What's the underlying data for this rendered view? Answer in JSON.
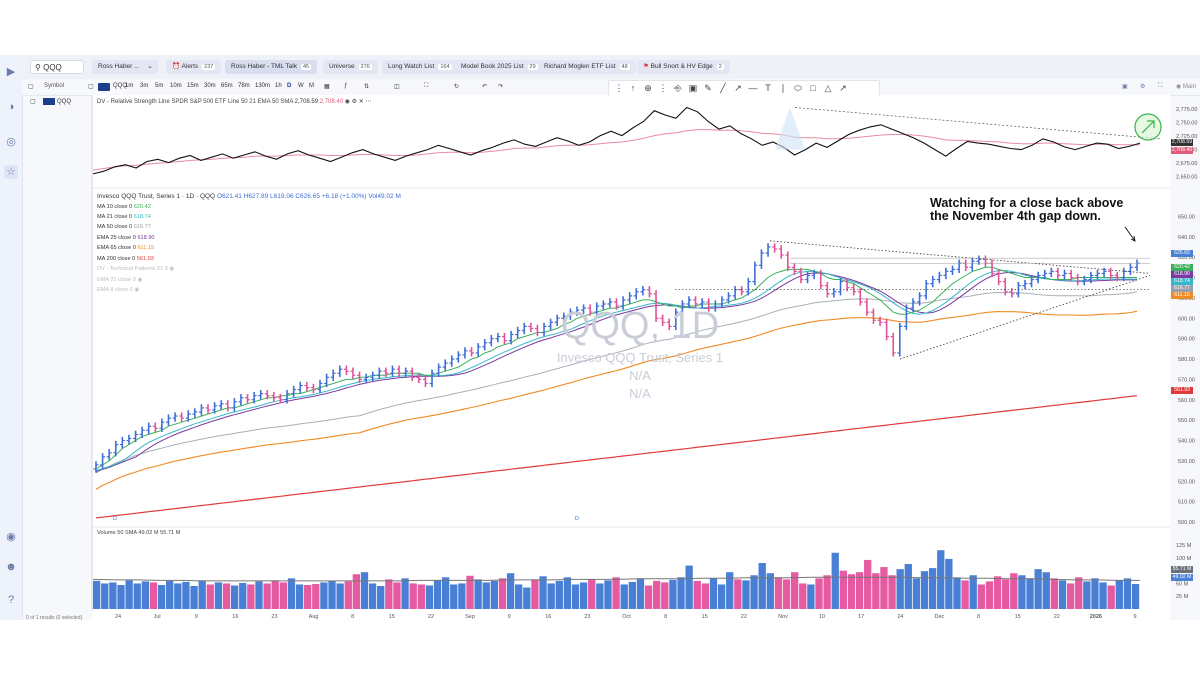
{
  "topbar": {
    "search_value": "QQQ",
    "user_pill": "Ross Haber ...",
    "alerts_label": "Alerts",
    "alerts_count": "237",
    "active_list": "Ross Haber - TML Talk",
    "active_list_count": "45",
    "lists": [
      {
        "label": "Universe",
        "count": "276"
      },
      {
        "label": "Long Watch List",
        "count": "164"
      },
      {
        "label": "Model Book 2025 List",
        "count": "29"
      },
      {
        "label": "Richard Moglen ETF List",
        "count": "48"
      },
      {
        "label": "Bull Snort & HV Edge",
        "count": "2"
      }
    ]
  },
  "toolbar2": {
    "symbol_label": "Symbol",
    "symbol_value": "QQQ",
    "timeframes": [
      "1m",
      "3m",
      "5m",
      "10m",
      "15m",
      "30m",
      "65m",
      "78m",
      "130m",
      "1h",
      "D",
      "W",
      "M"
    ],
    "mode": "Main"
  },
  "rs_panel": {
    "symbol": "QQQ",
    "title": "DV - Relative Strength Line SPDR S&P 500 ETF Line 50 21 EMA 50 SMA",
    "v1": "2,708.59",
    "v2": "2,708.40",
    "y_ticks": [
      "2,775.00",
      "2,750.00",
      "2,725.00",
      "2,700.00",
      "2,675.00",
      "2,650.00"
    ],
    "badges": [
      "2,708.59",
      "2,708.40"
    ]
  },
  "price_panel": {
    "title": "Invesco QQQ Trust, Series 1 · 1D · QQQ",
    "ohlc": "O621.41 H627.89 L619.06 C626.65 +6.18 (+1.00%) Vol49.02 M",
    "legend": [
      {
        "label": "MA 10 close 0",
        "value": "620.42",
        "color": "#3bb05a"
      },
      {
        "label": "MA 21 close 0",
        "value": "618.74",
        "color": "#36b8c8"
      },
      {
        "label": "MA 50 close 0",
        "value": "616.77",
        "color": "#9aa0aa"
      },
      {
        "label": "EMA 25 close 0",
        "value": "618.90",
        "color": "#7a3aa0"
      },
      {
        "label": "EMA 65 close 0",
        "value": "611.15",
        "color": "#f08a24"
      },
      {
        "label": "MA 200 close 0",
        "value": "561.93",
        "color": "#e03a3a"
      },
      {
        "label": "DV - Technical Patterns 21 3",
        "value": "",
        "color": "#bbbbbb"
      },
      {
        "label": "EMA 21 close 0",
        "value": "",
        "color": "#bbbbbb"
      },
      {
        "label": "EMA 8 close 0",
        "value": "",
        "color": "#bbbbbb"
      }
    ],
    "watermark_main": "QQQ, 1D",
    "watermark_sub": "Invesco QQQ Trust, Series 1",
    "watermark_na1": "N/A",
    "watermark_na2": "N/A",
    "annotation": "Watching for a close back above\nthe November 4th gap down.",
    "d_marker": "D",
    "badges": [
      {
        "value": "626.65",
        "color": "#4a7fd6"
      },
      {
        "value": "620.42",
        "color": "#3bb05a"
      },
      {
        "value": "618.90",
        "color": "#7a3aa0"
      },
      {
        "value": "618.74",
        "color": "#36b8c8"
      },
      {
        "value": "616.77",
        "color": "#9aa0aa"
      },
      {
        "value": "611.15",
        "color": "#f08a24"
      },
      {
        "value": "561.93",
        "color": "#e03a3a"
      }
    ]
  },
  "volume_panel": {
    "title": "Volume 50 SMA 49.02 M 55.71 M",
    "y_ticks": [
      "125 M",
      "100 M",
      "75 M",
      "50 M",
      "25 M"
    ],
    "badges": [
      {
        "value": "55.71 M",
        "color": "#6a6f7a"
      },
      {
        "value": "49.02 M",
        "color": "#4a7fd6"
      }
    ]
  },
  "x_axis": [
    "24",
    "Jul",
    "9",
    "16",
    "23",
    "Aug",
    "8",
    "15",
    "22",
    "Sep",
    "9",
    "16",
    "23",
    "Oct",
    "8",
    "15",
    "22",
    "Nov",
    "10",
    "17",
    "24",
    "Dec",
    "8",
    "15",
    "22",
    "2026",
    "9"
  ],
  "status": "0 of 1 results (0 selected)",
  "colors": {
    "up": "#3f6fd6",
    "down": "#e0529a",
    "rs": "#111111",
    "rs_ema": "#e88ca0"
  },
  "chart_data": [
    {
      "type": "ohlc",
      "title": "Invesco QQQ Trust, Series 1 · 1D · QQQ",
      "ylim": [
        500,
        660
      ],
      "y_ticks": [
        500,
        510,
        520,
        530,
        540,
        550,
        560,
        570,
        580,
        590,
        600,
        610,
        620,
        630,
        640,
        650
      ],
      "closes": [
        528,
        532,
        534,
        538,
        540,
        541,
        543,
        545,
        547,
        546,
        549,
        551,
        552,
        551,
        553,
        554,
        556,
        555,
        557,
        558,
        556,
        559,
        561,
        560,
        562,
        563,
        562,
        561,
        560,
        563,
        565,
        567,
        566,
        565,
        568,
        571,
        573,
        575,
        574,
        572,
        570,
        571,
        572,
        574,
        573,
        575,
        573,
        574,
        571,
        570,
        568,
        573,
        576,
        578,
        580,
        582,
        584,
        583,
        586,
        588,
        590,
        591,
        589,
        592,
        594,
        596,
        595,
        593,
        596,
        598,
        600,
        601,
        603,
        604,
        605,
        603,
        606,
        607,
        608,
        606,
        609,
        611,
        613,
        614,
        612,
        600,
        598,
        596,
        603,
        607,
        609,
        607,
        608,
        605,
        607,
        609,
        611,
        614,
        613,
        618,
        626,
        632,
        635,
        634,
        631,
        625,
        623,
        619,
        621,
        622,
        616,
        612,
        613,
        618,
        615,
        613,
        608,
        603,
        599,
        598,
        591,
        583,
        596,
        605,
        608,
        611,
        617,
        619,
        621,
        623,
        624,
        627,
        625,
        628,
        629,
        627,
        622,
        618,
        613,
        612,
        616,
        617,
        619,
        621,
        622,
        623,
        621,
        622,
        620,
        618,
        619,
        621,
        622,
        623,
        621,
        620,
        623,
        625,
        627
      ],
      "ma10": [
        526,
        528,
        530,
        533,
        536,
        538,
        540,
        542,
        543,
        544,
        545,
        547,
        548,
        549,
        550,
        551,
        552,
        553,
        554,
        555,
        556,
        556,
        557,
        558,
        559,
        560,
        561,
        561,
        562,
        562,
        563,
        563,
        564,
        565,
        566,
        567,
        568,
        569,
        570,
        570,
        571,
        571,
        572,
        572,
        572,
        573,
        573,
        573,
        573,
        573,
        572,
        572,
        573,
        574,
        575,
        576,
        578,
        580,
        581,
        583,
        584,
        586,
        587,
        588,
        590,
        591,
        592,
        593,
        593,
        594,
        595,
        597,
        598,
        600,
        601,
        602,
        603,
        604,
        605,
        605,
        606,
        607,
        608,
        609,
        609,
        608,
        607,
        606,
        606,
        605,
        606,
        606,
        607,
        607,
        607,
        607,
        608,
        609,
        610,
        612,
        614,
        617,
        620,
        622,
        623,
        624,
        624,
        624,
        624,
        623,
        622,
        620,
        619,
        619,
        618,
        617,
        615,
        613,
        611,
        609,
        606,
        603,
        602,
        602,
        603,
        604,
        606,
        608,
        611,
        614,
        617,
        619,
        621,
        623,
        624,
        625,
        625,
        624,
        623,
        622,
        621,
        620,
        620,
        620,
        620,
        619,
        619,
        619,
        619,
        620,
        620,
        620,
        620,
        620,
        620,
        620,
        620,
        620,
        620
      ]
    },
    {
      "type": "line",
      "title": "DV - Relative Strength Line SPDR S&P 500 ETF Line 50 21 EMA 50 SMA",
      "ylim": [
        2640,
        2790
      ],
      "rs_line": [
        2655,
        2660,
        2668,
        2672,
        2666,
        2678,
        2682,
        2676,
        2684,
        2689,
        2680,
        2686,
        2692,
        2684,
        2690,
        2696,
        2688,
        2682,
        2692,
        2698,
        2690,
        2684,
        2678,
        2686,
        2694,
        2700,
        2692,
        2686,
        2680,
        2688,
        2694,
        2700,
        2708,
        2702,
        2696,
        2690,
        2698,
        2704,
        2712,
        2718,
        2710,
        2706,
        2714,
        2722,
        2716,
        2708,
        2714,
        2726,
        2734,
        2726,
        2740,
        2752,
        2772,
        2764,
        2758,
        2778,
        2770,
        2752,
        2738,
        2744,
        2730,
        2720,
        2708,
        2714,
        2704,
        2690,
        2700,
        2712,
        2704,
        2716,
        2728,
        2736,
        2742,
        2746,
        2738,
        2730,
        2722,
        2712,
        2700,
        2688,
        2702,
        2715,
        2712,
        2710,
        2706,
        2702,
        2700,
        2708,
        2720,
        2714,
        2705,
        2700,
        2706,
        2712,
        2710,
        2702,
        2706,
        2712
      ],
      "rs_ema": [
        2662,
        2665,
        2668,
        2670,
        2671,
        2673,
        2675,
        2676,
        2678,
        2680,
        2681,
        2682,
        2684,
        2685,
        2686,
        2688,
        2688,
        2688,
        2689,
        2690,
        2690,
        2690,
        2689,
        2689,
        2690,
        2691,
        2691,
        2690,
        2689,
        2689,
        2690,
        2692,
        2694,
        2695,
        2695,
        2694,
        2695,
        2697,
        2699,
        2702,
        2703,
        2703,
        2705,
        2707,
        2708,
        2708,
        2709,
        2711,
        2713,
        2714,
        2717,
        2721,
        2726,
        2729,
        2731,
        2735,
        2737,
        2737,
        2736,
        2736,
        2735,
        2733,
        2730,
        2729,
        2727,
        2723,
        2722,
        2722,
        2720,
        2720,
        2721,
        2723,
        2725,
        2727,
        2728,
        2728,
        2727,
        2725,
        2722,
        2718,
        2717,
        2717,
        2716,
        2715,
        2714,
        2712,
        2711,
        2711,
        2712,
        2712,
        2711,
        2710,
        2709,
        2710,
        2710,
        2709,
        2709,
        2709
      ]
    },
    {
      "type": "bar",
      "title": "Volume 50 SMA",
      "ylim": [
        0,
        135
      ],
      "values": [
        55,
        50,
        52,
        47,
        56,
        50,
        54,
        52,
        47,
        55,
        50,
        53,
        45,
        56,
        48,
        52,
        50,
        46,
        51,
        48,
        54,
        50,
        56,
        52,
        60,
        48,
        47,
        49,
        52,
        55,
        50,
        54,
        68,
        72,
        50,
        45,
        58,
        52,
        60,
        50,
        48,
        46,
        56,
        62,
        48,
        50,
        65,
        58,
        52,
        55,
        60,
        70,
        48,
        42,
        58,
        64,
        50,
        55,
        62,
        48,
        52,
        58,
        50,
        56,
        62,
        48,
        53,
        60,
        46,
        55,
        52,
        57,
        62,
        85,
        55,
        50,
        60,
        48,
        72,
        58,
        56,
        66,
        90,
        70,
        62,
        58,
        72,
        50,
        48,
        60,
        66,
        110,
        75,
        68,
        72,
        96,
        70,
        82,
        66,
        78,
        88,
        60,
        74,
        80,
        115,
        98,
        62,
        56,
        66,
        48,
        54,
        64,
        58,
        70,
        66,
        60,
        78,
        72,
        60,
        56,
        50,
        62,
        54,
        60,
        52,
        46,
        56,
        60,
        49
      ],
      "sma": [
        58,
        57,
        57,
        56,
        56,
        55,
        55,
        55,
        55,
        55,
        55,
        55,
        55,
        55,
        55,
        56,
        56,
        56,
        56,
        57,
        57,
        57,
        58,
        58,
        58,
        59,
        59,
        59,
        60,
        60,
        61,
        61,
        61,
        62,
        62,
        62,
        62,
        62,
        61,
        61,
        60,
        60,
        59,
        59,
        58,
        57,
        57,
        56,
        56
      ]
    }
  ]
}
